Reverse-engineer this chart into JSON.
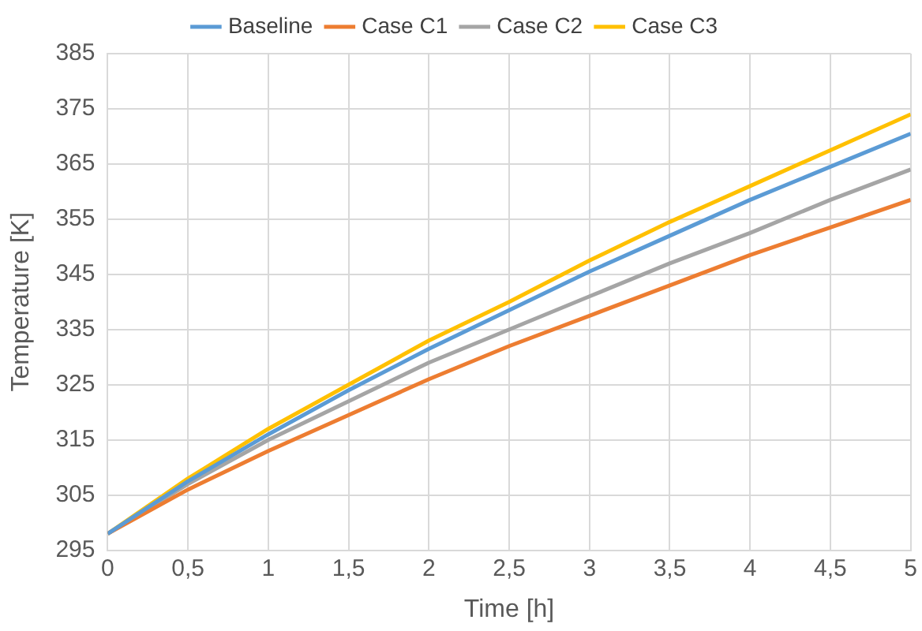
{
  "chart_data": {
    "type": "line",
    "xlabel": "Time [h]",
    "ylabel": "Temperature [K]",
    "x": [
      0,
      0.5,
      1,
      1.5,
      2,
      2.5,
      3,
      3.5,
      4,
      4.5,
      5
    ],
    "series": [
      {
        "name": "Baseline",
        "color": "#5b9bd5",
        "values": [
          298,
          307.5,
          316,
          324,
          331.5,
          338.5,
          345.5,
          352,
          358.5,
          364.5,
          370.5
        ]
      },
      {
        "name": "Case C1",
        "color": "#ed7d31",
        "values": [
          298,
          306,
          313,
          319.5,
          326,
          332,
          337.5,
          343,
          348.5,
          353.5,
          358.5
        ]
      },
      {
        "name": "Case C2",
        "color": "#a5a5a5",
        "values": [
          298,
          307,
          315,
          322,
          329,
          335,
          341,
          347,
          352.5,
          358.5,
          364
        ]
      },
      {
        "name": "Case C3",
        "color": "#ffc000",
        "values": [
          298,
          308,
          317,
          325,
          333,
          340,
          347.5,
          354.5,
          361,
          367.5,
          374
        ]
      }
    ],
    "xlim": [
      0,
      5
    ],
    "xticks": [
      0,
      {
        "value": 0.5,
        "label": "0,5"
      },
      1,
      {
        "value": 1.5,
        "label": "1,5"
      },
      2,
      {
        "value": 2.5,
        "label": "2,5"
      },
      3,
      {
        "value": 3.5,
        "label": "3,5"
      },
      4,
      {
        "value": 4.5,
        "label": "4,5"
      },
      5
    ],
    "ylim": [
      295,
      385
    ],
    "yticks": [
      295,
      305,
      315,
      325,
      335,
      345,
      355,
      365,
      375,
      385
    ],
    "grid": true,
    "legend": "top",
    "marker": "none",
    "line_style": "solid"
  }
}
